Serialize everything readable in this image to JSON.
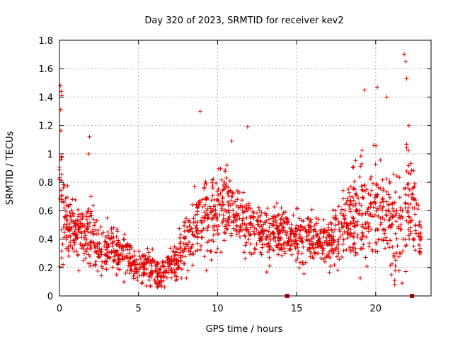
{
  "chart_data": {
    "type": "scatter",
    "title": "Day 320 of 2023, SRMTID for receiver kev2",
    "xlabel": "GPS time / hours",
    "ylabel": "SRMTID / TECUs",
    "xlim": [
      0,
      23.5
    ],
    "ylim": [
      0,
      1.8
    ],
    "x_ticks": [
      0,
      5,
      10,
      15,
      20
    ],
    "x_tick_labels": [
      "0",
      "5",
      "10",
      "15",
      "20"
    ],
    "y_ticks": [
      0,
      0.2,
      0.4,
      0.6,
      0.8,
      1.0,
      1.2,
      1.4,
      1.6,
      1.8
    ],
    "y_tick_labels": [
      "0",
      "0.2",
      "0.4",
      "0.6",
      "0.8",
      "1",
      "1.2",
      "1.4",
      "1.6",
      "1.8"
    ],
    "grid": true,
    "marker": "plus",
    "series": [
      {
        "name": "SRMTID",
        "color": "#e00000",
        "envelope": {
          "hours": [
            0.0,
            0.3,
            0.6,
            1.0,
            1.5,
            2.0,
            2.5,
            3.0,
            3.5,
            4.0,
            4.5,
            5.0,
            5.5,
            6.0,
            6.5,
            7.0,
            7.5,
            8.0,
            8.5,
            9.0,
            9.5,
            10.0,
            10.5,
            11.0,
            11.5,
            12.0,
            12.5,
            13.0,
            13.5,
            14.0,
            14.5,
            15.0,
            15.5,
            16.0,
            16.5,
            17.0,
            17.5,
            18.0,
            18.5,
            19.0,
            19.5,
            20.0,
            20.5,
            21.0,
            21.5,
            22.0,
            22.5,
            22.9
          ],
          "median": [
            0.85,
            0.55,
            0.48,
            0.45,
            0.42,
            0.45,
            0.3,
            0.3,
            0.3,
            0.3,
            0.25,
            0.2,
            0.22,
            0.18,
            0.15,
            0.2,
            0.25,
            0.35,
            0.45,
            0.5,
            0.58,
            0.6,
            0.62,
            0.55,
            0.55,
            0.5,
            0.45,
            0.4,
            0.42,
            0.45,
            0.45,
            0.42,
            0.42,
            0.4,
            0.38,
            0.38,
            0.42,
            0.5,
            0.55,
            0.6,
            0.62,
            0.65,
            0.6,
            0.55,
            0.5,
            0.62,
            0.55,
            0.4
          ],
          "spread": [
            0.35,
            0.2,
            0.12,
            0.12,
            0.12,
            0.15,
            0.1,
            0.1,
            0.1,
            0.1,
            0.08,
            0.08,
            0.08,
            0.08,
            0.07,
            0.08,
            0.1,
            0.12,
            0.15,
            0.15,
            0.18,
            0.18,
            0.18,
            0.15,
            0.15,
            0.15,
            0.12,
            0.12,
            0.12,
            0.12,
            0.12,
            0.12,
            0.12,
            0.1,
            0.1,
            0.12,
            0.15,
            0.18,
            0.2,
            0.22,
            0.22,
            0.22,
            0.2,
            0.22,
            0.25,
            0.3,
            0.2,
            0.1
          ],
          "count": 1800
        },
        "notable_points": [
          {
            "x": 0.05,
            "y": 1.48
          },
          {
            "x": 0.1,
            "y": 1.44
          },
          {
            "x": 0.08,
            "y": 1.31
          },
          {
            "x": 0.15,
            "y": 1.41
          },
          {
            "x": 1.9,
            "y": 1.12
          },
          {
            "x": 1.85,
            "y": 1.0
          },
          {
            "x": 8.9,
            "y": 1.3
          },
          {
            "x": 10.9,
            "y": 1.09
          },
          {
            "x": 11.9,
            "y": 1.19
          },
          {
            "x": 19.3,
            "y": 1.45
          },
          {
            "x": 20.1,
            "y": 1.47
          },
          {
            "x": 20.7,
            "y": 1.4
          },
          {
            "x": 21.8,
            "y": 1.7
          },
          {
            "x": 21.9,
            "y": 1.65
          },
          {
            "x": 21.95,
            "y": 1.53
          },
          {
            "x": 22.1,
            "y": 1.2
          },
          {
            "x": 21.2,
            "y": 0.08
          },
          {
            "x": 21.0,
            "y": 0.15
          },
          {
            "x": 5.5,
            "y": 0.07
          },
          {
            "x": 6.3,
            "y": 0.08
          }
        ]
      }
    ],
    "axis_markers": [
      {
        "x": 14.4,
        "y": 0,
        "shape": "square",
        "color": "#e00000"
      },
      {
        "x": 22.3,
        "y": 0,
        "shape": "square",
        "color": "#e00000"
      }
    ]
  }
}
